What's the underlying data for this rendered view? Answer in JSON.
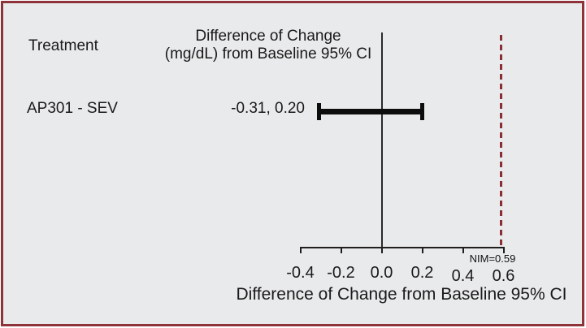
{
  "figure": {
    "treatment_header": "Treatment",
    "ci_header_line1": "Difference of Change",
    "ci_header_line2": "(mg/dL) from Baseline 95% CI",
    "rows": [
      {
        "treatment": "AP301 - SEV",
        "ci_text": "-0.31, 0.20"
      }
    ]
  },
  "chart_data": {
    "type": "scatter",
    "subtype": "forest-errorbar",
    "rows": [
      {
        "label": "AP301 - SEV",
        "ci_low": -0.31,
        "ci_high": 0.2
      }
    ],
    "x_ticks": [
      -0.4,
      -0.2,
      0.0,
      0.2,
      0.4,
      0.6
    ],
    "xlim": [
      -0.4,
      0.6
    ],
    "reference_line_x": 0.0,
    "nim_line_x": 0.59,
    "nim_label": "NIM=0.59",
    "xlabel": "Difference of Change from Baseline 95% CI",
    "grid": false,
    "legend": "none"
  },
  "colors": {
    "background": "#e9eaeb",
    "frame_border": "#8e3339",
    "nim_line": "#8b2e33",
    "axis": "#1f1f1f",
    "bar": "#0d0d0d",
    "text": "#1a1a1a"
  }
}
